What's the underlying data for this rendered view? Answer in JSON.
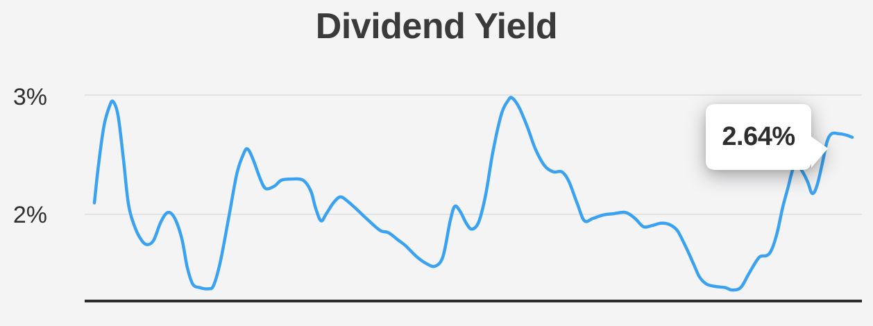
{
  "chart_data": {
    "type": "line",
    "title": "Dividend Yield",
    "xlabel": "",
    "ylabel": "",
    "unit": "%",
    "grid": "horizontal",
    "legend": "none",
    "ylim": [
      1.27,
      3.1
    ],
    "yticks": [
      {
        "label": "3%",
        "value": 3
      },
      {
        "label": "2%",
        "value": 2
      }
    ],
    "annotation": {
      "label": "2.64%",
      "value": 2.64,
      "attached_to": "last-point",
      "shape": "speech-bubble-right-pointer"
    },
    "colors": {
      "line": "#3ba2f1",
      "grid": "#e3e3e4",
      "axis": "#2b2b2b",
      "background": "#f4f4f5",
      "text": "#2f2f2f",
      "tooltip_bg": "#ffffff",
      "tooltip_text": "#2d2d2d"
    },
    "series": [
      {
        "name": "Dividend Yield",
        "points_xfrac_value": [
          [
            0.0125,
            2.09
          ],
          [
            0.018,
            2.42
          ],
          [
            0.025,
            2.74
          ],
          [
            0.032,
            2.9
          ],
          [
            0.0366,
            2.94
          ],
          [
            0.043,
            2.82
          ],
          [
            0.05,
            2.45
          ],
          [
            0.0563,
            2.08
          ],
          [
            0.065,
            1.88
          ],
          [
            0.074,
            1.77
          ],
          [
            0.0813,
            1.74
          ],
          [
            0.089,
            1.78
          ],
          [
            0.098,
            1.93
          ],
          [
            0.107,
            2.01
          ],
          [
            0.116,
            1.96
          ],
          [
            0.125,
            1.79
          ],
          [
            0.132,
            1.55
          ],
          [
            0.139,
            1.41
          ],
          [
            0.148,
            1.38
          ],
          [
            0.159,
            1.37
          ],
          [
            0.166,
            1.4
          ],
          [
            0.175,
            1.61
          ],
          [
            0.186,
            1.99
          ],
          [
            0.196,
            2.34
          ],
          [
            0.205,
            2.51
          ],
          [
            0.21,
            2.54
          ],
          [
            0.217,
            2.45
          ],
          [
            0.226,
            2.29
          ],
          [
            0.233,
            2.21
          ],
          [
            0.244,
            2.23
          ],
          [
            0.253,
            2.28
          ],
          [
            0.266,
            2.29
          ],
          [
            0.281,
            2.28
          ],
          [
            0.291,
            2.19
          ],
          [
            0.297,
            2.05
          ],
          [
            0.304,
            1.94
          ],
          [
            0.311,
            2.0
          ],
          [
            0.32,
            2.09
          ],
          [
            0.329,
            2.14
          ],
          [
            0.339,
            2.1
          ],
          [
            0.351,
            2.03
          ],
          [
            0.364,
            1.95
          ],
          [
            0.38,
            1.86
          ],
          [
            0.391,
            1.84
          ],
          [
            0.403,
            1.78
          ],
          [
            0.413,
            1.73
          ],
          [
            0.427,
            1.64
          ],
          [
            0.44,
            1.58
          ],
          [
            0.451,
            1.56
          ],
          [
            0.461,
            1.64
          ],
          [
            0.47,
            1.93
          ],
          [
            0.476,
            2.06
          ],
          [
            0.483,
            2.02
          ],
          [
            0.491,
            1.92
          ],
          [
            0.498,
            1.87
          ],
          [
            0.507,
            1.93
          ],
          [
            0.516,
            2.16
          ],
          [
            0.525,
            2.51
          ],
          [
            0.536,
            2.83
          ],
          [
            0.545,
            2.95
          ],
          [
            0.55,
            2.97
          ],
          [
            0.559,
            2.89
          ],
          [
            0.57,
            2.72
          ],
          [
            0.58,
            2.54
          ],
          [
            0.592,
            2.4
          ],
          [
            0.603,
            2.35
          ],
          [
            0.614,
            2.35
          ],
          [
            0.623,
            2.27
          ],
          [
            0.634,
            2.08
          ],
          [
            0.643,
            1.94
          ],
          [
            0.654,
            1.96
          ],
          [
            0.668,
            1.99
          ],
          [
            0.681,
            2.0
          ],
          [
            0.696,
            2.01
          ],
          [
            0.708,
            1.96
          ],
          [
            0.719,
            1.89
          ],
          [
            0.73,
            1.9
          ],
          [
            0.742,
            1.92
          ],
          [
            0.752,
            1.91
          ],
          [
            0.761,
            1.87
          ],
          [
            0.766,
            1.82
          ],
          [
            0.775,
            1.7
          ],
          [
            0.784,
            1.57
          ],
          [
            0.791,
            1.47
          ],
          [
            0.8,
            1.41
          ],
          [
            0.811,
            1.39
          ],
          [
            0.824,
            1.38
          ],
          [
            0.833,
            1.36
          ],
          [
            0.844,
            1.38
          ],
          [
            0.854,
            1.49
          ],
          [
            0.863,
            1.59
          ],
          [
            0.869,
            1.64
          ],
          [
            0.878,
            1.65
          ],
          [
            0.884,
            1.7
          ],
          [
            0.891,
            1.84
          ],
          [
            0.898,
            2.05
          ],
          [
            0.905,
            2.22
          ],
          [
            0.911,
            2.37
          ],
          [
            0.916,
            2.42
          ],
          [
            0.922,
            2.37
          ],
          [
            0.93,
            2.27
          ],
          [
            0.936,
            2.17
          ],
          [
            0.942,
            2.23
          ],
          [
            0.949,
            2.42
          ],
          [
            0.955,
            2.6
          ],
          [
            0.961,
            2.67
          ],
          [
            0.97,
            2.67
          ],
          [
            0.979,
            2.66
          ],
          [
            0.9875,
            2.64
          ]
        ]
      }
    ]
  }
}
